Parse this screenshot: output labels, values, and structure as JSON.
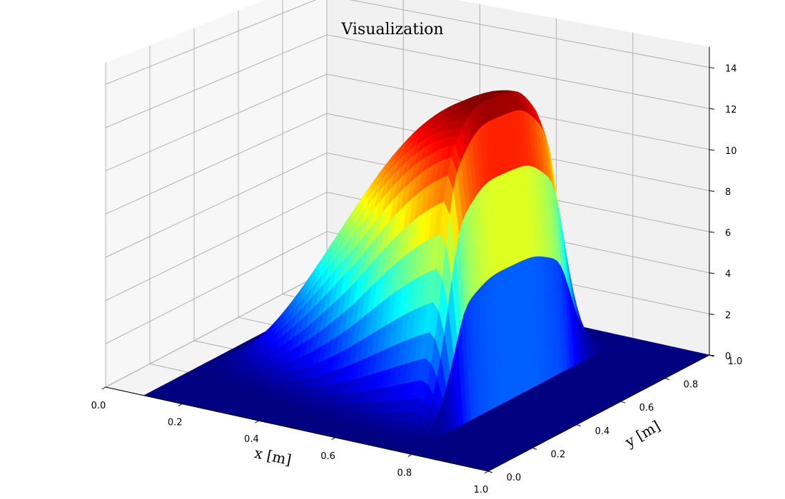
{
  "chart_data": {
    "type": "surface",
    "title": "Visualization",
    "xlabel": "x [m]",
    "ylabel": "y [m]",
    "zlabel": "",
    "colormap": "jet",
    "xlim": [
      0,
      1
    ],
    "ylim": [
      0,
      1
    ],
    "zlim": [
      0,
      15
    ],
    "x_ticks": [
      "0.0",
      "0.2",
      "0.4",
      "0.6",
      "0.8",
      "1.0"
    ],
    "y_ticks": [
      "0.0",
      "0.2",
      "0.4",
      "0.6",
      "0.8",
      "1.0"
    ],
    "z_ticks": [
      "0",
      "2",
      "4",
      "6",
      "8",
      "10",
      "12",
      "14"
    ],
    "grid": true,
    "surface": {
      "description": "wave front: zero plateau for x<~0.1 and x>~0.75 with a smooth rise along x and a steep drop near x≈0.75; peak along y≈0.5",
      "domain": [
        [
          0.1,
          0.75
        ],
        [
          0.25,
          0.75
        ]
      ],
      "z_max": 13.8,
      "peak_x": 0.73,
      "rise_start_x": 0.1,
      "drop_width_x": 0.06,
      "z_min": 0
    }
  }
}
